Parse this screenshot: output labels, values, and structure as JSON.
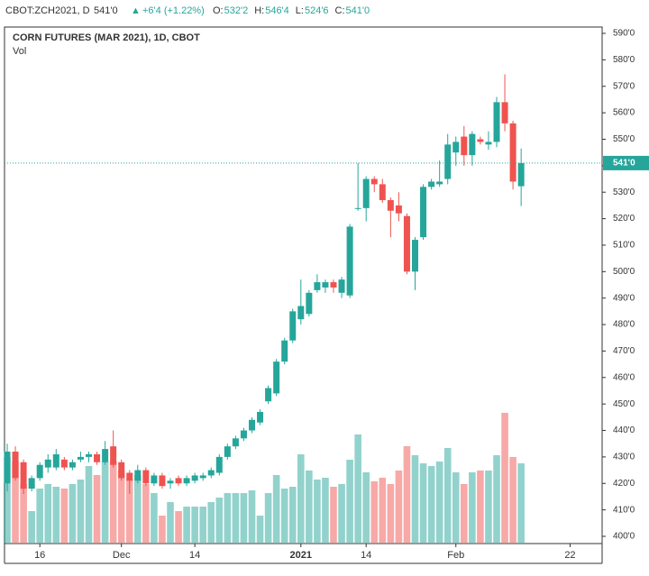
{
  "header": {
    "symbol": "CBOT:ZCH2021, D",
    "last": "541'0",
    "change": "+6'4 (+1.22%)",
    "ohlc": [
      {
        "label": "O:",
        "value": "532'2"
      },
      {
        "label": "H:",
        "value": "546'4"
      },
      {
        "label": "L:",
        "value": "524'6"
      },
      {
        "label": "C:",
        "value": "541'0"
      }
    ]
  },
  "chart_data": {
    "type": "candlestick",
    "title": "CORN FUTURES (MAR 2021), 1D, CBOT",
    "volume_label": "Vol",
    "categories": [
      null,
      null,
      null,
      null,
      "16",
      null,
      null,
      null,
      null,
      null,
      null,
      null,
      null,
      null,
      "Dec",
      null,
      null,
      null,
      null,
      null,
      null,
      null,
      null,
      "14",
      null,
      null,
      null,
      null,
      null,
      null,
      null,
      null,
      null,
      null,
      null,
      null,
      "2021",
      null,
      null,
      null,
      null,
      null,
      null,
      null,
      "14",
      null,
      null,
      null,
      null,
      null,
      null,
      null,
      null,
      null,
      null,
      "Feb",
      null,
      null,
      null,
      null,
      null,
      null,
      null,
      null,
      null,
      null,
      null,
      null,
      null,
      "22"
    ],
    "open": [
      420,
      432,
      428,
      418,
      422,
      426,
      426,
      429,
      426,
      429,
      430,
      431,
      428,
      434,
      428,
      424,
      421,
      425,
      420,
      423,
      420,
      422,
      420,
      421,
      422,
      423,
      424,
      430,
      434,
      437,
      440,
      443,
      451,
      454,
      466,
      474,
      482,
      484,
      493,
      494,
      496,
      492,
      491,
      524,
      524,
      535,
      533,
      527,
      525,
      521,
      500,
      513,
      532,
      533,
      535,
      545,
      551,
      544,
      550,
      548,
      549,
      564,
      556,
      532.25,
      null,
      null,
      null,
      null,
      null,
      null
    ],
    "high": [
      435,
      434,
      429,
      423,
      428,
      431,
      433,
      430,
      429,
      432,
      432,
      432,
      436,
      440,
      429,
      425,
      427,
      426,
      424,
      424,
      422,
      423,
      423,
      424,
      424,
      426,
      431,
      435,
      438,
      441,
      445,
      448,
      457,
      467,
      475,
      486,
      497,
      493,
      499,
      497,
      497,
      498,
      518,
      541,
      536,
      536,
      535,
      528,
      530,
      522,
      513,
      533,
      535,
      542,
      552,
      551,
      555,
      553,
      551,
      553,
      566,
      574.5,
      557,
      546.5,
      null,
      null,
      null,
      null,
      null,
      null
    ],
    "low": [
      417,
      421,
      416,
      417,
      421,
      424,
      425,
      425,
      425,
      428,
      428,
      427,
      427,
      426,
      421,
      416,
      420,
      419,
      419,
      418,
      418,
      419,
      419,
      420,
      421,
      422,
      423,
      429,
      433,
      436,
      439,
      442,
      450,
      453,
      465,
      473,
      480,
      483,
      492,
      492,
      492,
      490,
      490,
      523,
      519,
      530,
      526,
      513,
      519,
      499,
      493,
      512,
      531,
      532,
      533,
      540,
      540,
      540,
      548,
      546,
      547,
      553,
      531,
      524.75,
      null,
      null,
      null,
      null,
      null,
      null
    ],
    "close": [
      432,
      422,
      418,
      422,
      427,
      429,
      431,
      426,
      428,
      430,
      431,
      428,
      433,
      427,
      422,
      421,
      425,
      420,
      423,
      419,
      421,
      420,
      422,
      423,
      423,
      425,
      430,
      434,
      437,
      440,
      444,
      447,
      456,
      466,
      474,
      485,
      487,
      492,
      496,
      496,
      494,
      497,
      517,
      524,
      535,
      533,
      527,
      523,
      522,
      500,
      512,
      532,
      534,
      534,
      548,
      549,
      544,
      552,
      549,
      549,
      564,
      556,
      534,
      541,
      null,
      null,
      null,
      null,
      null,
      null
    ],
    "volume": [
      95,
      90,
      65,
      35,
      60,
      65,
      62,
      60,
      65,
      70,
      85,
      75,
      90,
      90,
      80,
      70,
      75,
      65,
      55,
      30,
      45,
      35,
      40,
      40,
      40,
      45,
      50,
      55,
      55,
      55,
      58,
      30,
      55,
      75,
      60,
      62,
      98,
      80,
      70,
      72,
      62,
      65,
      92,
      120,
      78,
      68,
      72,
      65,
      80,
      107,
      97,
      88,
      85,
      90,
      105,
      78,
      65,
      78,
      80,
      80,
      97,
      144,
      95,
      88,
      null,
      null,
      null,
      null,
      null,
      null
    ],
    "up_color": "#26a69a",
    "down_color": "#ef5350",
    "last_price": 541,
    "last_price_label": "541'0",
    "ylim": [
      400,
      590
    ],
    "yticks": [
      {
        "value": 400,
        "label": "400'0"
      },
      {
        "value": 410,
        "label": "410'0"
      },
      {
        "value": 420,
        "label": "420'0"
      },
      {
        "value": 430,
        "label": "430'0"
      },
      {
        "value": 440,
        "label": "440'0"
      },
      {
        "value": 450,
        "label": "450'0"
      },
      {
        "value": 460,
        "label": "460'0"
      },
      {
        "value": 470,
        "label": "470'0"
      },
      {
        "value": 480,
        "label": "480'0"
      },
      {
        "value": 490,
        "label": "490'0"
      },
      {
        "value": 500,
        "label": "500'0"
      },
      {
        "value": 510,
        "label": "510'0"
      },
      {
        "value": 520,
        "label": "520'0"
      },
      {
        "value": 530,
        "label": "530'0"
      },
      {
        "value": 540,
        "label": "540'0"
      },
      {
        "value": 550,
        "label": "550'0"
      },
      {
        "value": 560,
        "label": "560'0"
      },
      {
        "value": 570,
        "label": "570'0"
      },
      {
        "value": 580,
        "label": "580'0"
      },
      {
        "value": 590,
        "label": "590'0"
      }
    ]
  }
}
